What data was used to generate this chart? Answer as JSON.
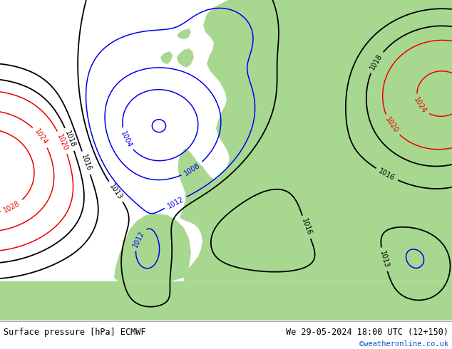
{
  "title_left": "Surface pressure [hPa] ECMWF",
  "title_right": "We 29-05-2024 18:00 UTC (12+150)",
  "copyright": "©weatheronline.co.uk",
  "bg_color_land": "#a8d890",
  "bg_color_sea": "#d8d8d8",
  "bg_color_mountain": "#b0b0b0",
  "bg_color_bottom": "#ffffff",
  "text_color_main": "#000000",
  "text_color_copy": "#0055cc",
  "fig_width": 6.34,
  "fig_height": 4.9,
  "bottom_bar_height": 0.082
}
